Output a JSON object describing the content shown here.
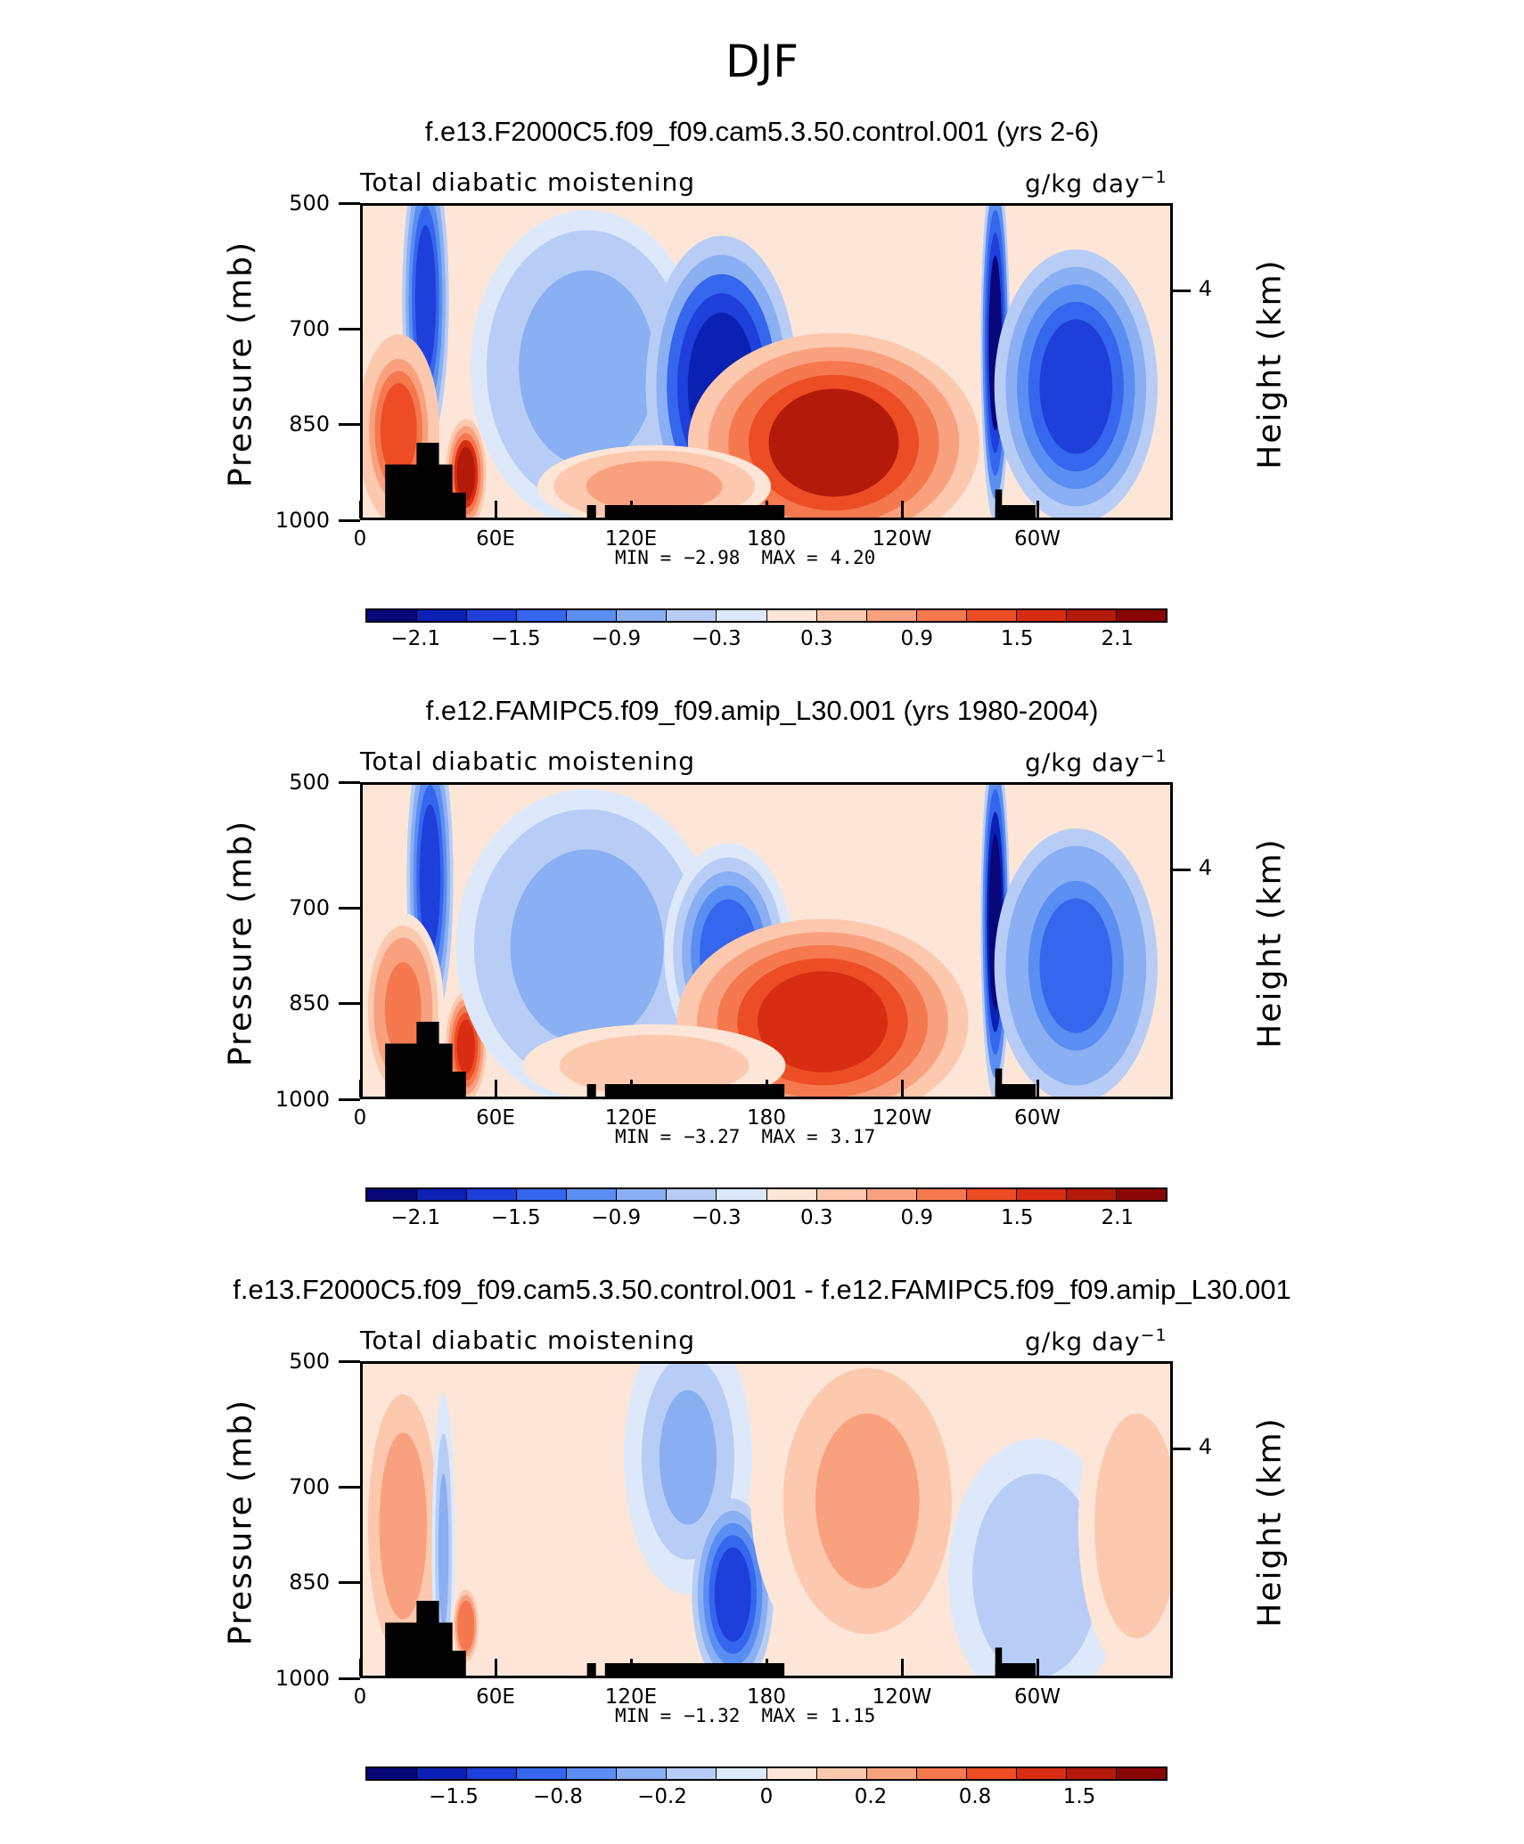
{
  "figure": {
    "title": "DJF"
  },
  "colors": {
    "scale": [
      "#08087a",
      "#0a21b3",
      "#1e3fd9",
      "#3566ee",
      "#5a8ef2",
      "#8aaff2",
      "#b8cdf5",
      "#dde9fb",
      "#fde6d8",
      "#fcc9ae",
      "#f9a17f",
      "#f5784f",
      "#ec4d24",
      "#d82d12",
      "#b31a0a",
      "#8a0606"
    ],
    "land": "#000000"
  },
  "chart_data": [
    {
      "type": "heatmap",
      "run_title": "f.e13.F2000C5.f09_f09.cam5.3.50.control.001 (yrs 2-6)",
      "variable": "Total diabatic moistening",
      "units": "g/kg day",
      "units_exp": "−1",
      "ylabel": "Pressure (mb)",
      "y2label": "Height (km)",
      "y_ticks": [
        "500",
        "700",
        "850",
        "1000"
      ],
      "y2_ticks": [
        "4"
      ],
      "x_ticks": [
        "0",
        "60E",
        "120E",
        "180",
        "120W",
        "60W"
      ],
      "x_range": [
        0,
        360
      ],
      "y_range": [
        1000,
        500
      ],
      "stats": {
        "min_label": "MIN =",
        "min": "−2.98",
        "max_label": "MAX =",
        "max": "4.20"
      },
      "colorbar_labels": [
        "−2.1",
        "−1.5",
        "−0.9",
        "−0.3",
        "0.3",
        "0.9",
        "1.5",
        "2.1"
      ],
      "features": [
        {
          "lon": 28,
          "p": 650,
          "v": -1.8,
          "w": 8,
          "h": 220
        },
        {
          "lon": 16,
          "p": 860,
          "v": 1.5,
          "w": 14,
          "h": 140
        },
        {
          "lon": 46,
          "p": 930,
          "v": 2.3,
          "w": 7,
          "h": 80
        },
        {
          "lon": 100,
          "p": 760,
          "v": -0.9,
          "w": 40,
          "h": 230
        },
        {
          "lon": 160,
          "p": 790,
          "v": -2.4,
          "w": 26,
          "h": 220
        },
        {
          "lon": 210,
          "p": 880,
          "v": 2.2,
          "w": 50,
          "h": 160
        },
        {
          "lon": 282,
          "p": 720,
          "v": -2.6,
          "w": 5,
          "h": 260
        },
        {
          "lon": 318,
          "p": 790,
          "v": -1.8,
          "w": 28,
          "h": 200
        },
        {
          "lon": 130,
          "p": 950,
          "v": 0.9,
          "w": 40,
          "h": 60
        }
      ]
    },
    {
      "type": "heatmap",
      "run_title": "f.e12.FAMIPC5.f09_f09.amip_L30.001 (yrs 1980-2004)",
      "variable": "Total diabatic moistening",
      "units": "g/kg day",
      "units_exp": "−1",
      "ylabel": "Pressure (mb)",
      "y2label": "Height (km)",
      "y_ticks": [
        "500",
        "700",
        "850",
        "1000"
      ],
      "y2_ticks": [
        "4"
      ],
      "x_ticks": [
        "0",
        "60E",
        "120E",
        "180",
        "120W",
        "60W"
      ],
      "x_range": [
        0,
        360
      ],
      "y_range": [
        1000,
        500
      ],
      "stats": {
        "min_label": "MIN =",
        "min": "−3.27",
        "max_label": "MAX =",
        "max": "3.17"
      },
      "colorbar_labels": [
        "−2.1",
        "−1.5",
        "−0.9",
        "−0.3",
        "0.3",
        "0.9",
        "1.5",
        "2.1"
      ],
      "features": [
        {
          "lon": 30,
          "p": 650,
          "v": -1.9,
          "w": 8,
          "h": 220
        },
        {
          "lon": 18,
          "p": 860,
          "v": 1.3,
          "w": 14,
          "h": 140
        },
        {
          "lon": 46,
          "p": 920,
          "v": 2.1,
          "w": 7,
          "h": 80
        },
        {
          "lon": 100,
          "p": 760,
          "v": -0.9,
          "w": 45,
          "h": 230
        },
        {
          "lon": 163,
          "p": 770,
          "v": -1.5,
          "w": 22,
          "h": 160
        },
        {
          "lon": 205,
          "p": 880,
          "v": 1.9,
          "w": 50,
          "h": 150
        },
        {
          "lon": 282,
          "p": 720,
          "v": -2.7,
          "w": 5,
          "h": 260
        },
        {
          "lon": 318,
          "p": 790,
          "v": -1.7,
          "w": 28,
          "h": 200
        },
        {
          "lon": 130,
          "p": 950,
          "v": 0.6,
          "w": 45,
          "h": 60
        }
      ]
    },
    {
      "type": "heatmap",
      "run_title": "f.e13.F2000C5.f09_f09.cam5.3.50.control.001 - f.e12.FAMIPC5.f09_f09.amip_L30.001",
      "variable": "Total diabatic moistening",
      "units": "g/kg day",
      "units_exp": "−1",
      "ylabel": "Pressure (mb)",
      "y2label": "Height (km)",
      "y_ticks": [
        "500",
        "700",
        "850",
        "1000"
      ],
      "y2_ticks": [
        "4"
      ],
      "x_ticks": [
        "0",
        "60E",
        "120E",
        "180",
        "120W",
        "60W"
      ],
      "x_range": [
        0,
        360
      ],
      "y_range": [
        1000,
        500
      ],
      "stats": {
        "min_label": "MIN =",
        "min": "−1.32",
        "max_label": "MAX =",
        "max": "1.15"
      },
      "colorbar_labels": [
        "−1.5",
        "−0.8",
        "−0.2",
        "0",
        "0.2",
        "0.8",
        "1.5"
      ],
      "features": [
        {
          "lon": 18,
          "p": 760,
          "v": 0.6,
          "w": 14,
          "h": 220
        },
        {
          "lon": 36,
          "p": 800,
          "v": -0.5,
          "w": 4,
          "h": 230
        },
        {
          "lon": 46,
          "p": 920,
          "v": 0.9,
          "w": 5,
          "h": 60
        },
        {
          "lon": 145,
          "p": 650,
          "v": -0.5,
          "w": 22,
          "h": 200
        },
        {
          "lon": 165,
          "p": 870,
          "v": -1.2,
          "w": 14,
          "h": 140
        },
        {
          "lon": 225,
          "p": 720,
          "v": 0.5,
          "w": 40,
          "h": 260
        },
        {
          "lon": 300,
          "p": 840,
          "v": -0.4,
          "w": 30,
          "h": 200
        },
        {
          "lon": 345,
          "p": 760,
          "v": 0.4,
          "w": 20,
          "h": 220
        }
      ]
    }
  ]
}
